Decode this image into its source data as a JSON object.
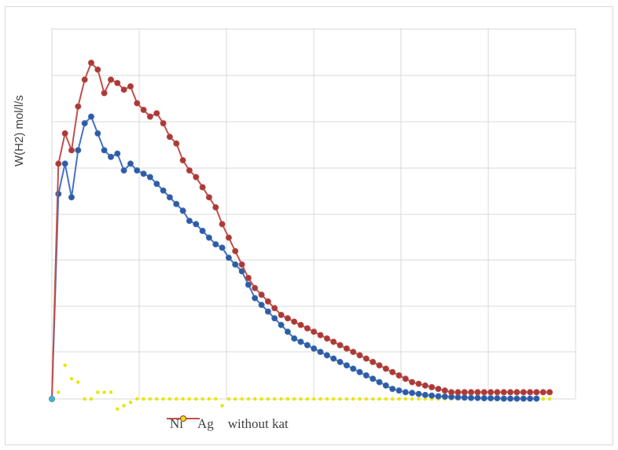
{
  "chart_data": {
    "type": "line",
    "title": "",
    "ylabel": "W(H2) mol/l/s",
    "xlabel": "",
    "grid": "vertical-and-horizontal",
    "legend_position": "bottom",
    "x_start": 0,
    "x_step": 1,
    "ylim": [
      0,
      1.0
    ],
    "series": [
      {
        "name": "Ni",
        "color": "#4472c4",
        "marker_color": "#2e5c9e",
        "values": [
          0,
          0.61,
          0.7,
          0.6,
          0.74,
          0.82,
          0.84,
          0.79,
          0.74,
          0.72,
          0.73,
          0.68,
          0.7,
          0.68,
          0.67,
          0.66,
          0.64,
          0.62,
          0.6,
          0.58,
          0.56,
          0.53,
          0.52,
          0.5,
          0.48,
          0.46,
          0.45,
          0.42,
          0.4,
          0.38,
          0.34,
          0.3,
          0.28,
          0.26,
          0.24,
          0.22,
          0.2,
          0.18,
          0.17,
          0.16,
          0.15,
          0.14,
          0.13,
          0.12,
          0.11,
          0.1,
          0.09,
          0.08,
          0.07,
          0.06,
          0.05,
          0.04,
          0.03,
          0.025,
          0.02,
          0.018,
          0.015,
          0.012,
          0.01,
          0.008,
          0.007,
          0.006,
          0.005,
          0.004,
          0.003,
          0.003,
          0.002,
          0.002,
          0.002,
          0.001,
          0.001,
          0.001,
          0.001,
          0.001,
          0.001
        ]
      },
      {
        "name": "Ag",
        "color": "#c0504d",
        "marker_color": "#a83a37",
        "values": [
          0,
          0.7,
          0.79,
          0.74,
          0.87,
          0.95,
          1.0,
          0.98,
          0.91,
          0.95,
          0.94,
          0.92,
          0.93,
          0.88,
          0.86,
          0.84,
          0.85,
          0.82,
          0.78,
          0.76,
          0.71,
          0.68,
          0.66,
          0.63,
          0.6,
          0.57,
          0.52,
          0.48,
          0.44,
          0.4,
          0.36,
          0.33,
          0.31,
          0.29,
          0.27,
          0.25,
          0.24,
          0.23,
          0.22,
          0.21,
          0.2,
          0.19,
          0.18,
          0.17,
          0.16,
          0.15,
          0.14,
          0.13,
          0.12,
          0.11,
          0.1,
          0.09,
          0.08,
          0.07,
          0.06,
          0.05,
          0.045,
          0.04,
          0.035,
          0.03,
          0.025,
          0.02,
          0.02,
          0.02,
          0.02,
          0.02,
          0.02,
          0.02,
          0.02,
          0.02,
          0.02,
          0.02,
          0.02,
          0.02,
          0.02,
          0.02,
          0.02
        ]
      },
      {
        "name": "without kat",
        "color": "#ffff00",
        "marker_color": "#e6e600",
        "line": false,
        "values": [
          0,
          0.02,
          0.1,
          0.06,
          0.05,
          0.0,
          0.0,
          0.02,
          0.02,
          0.02,
          -0.03,
          -0.02,
          -0.01,
          0.0,
          0.0,
          0.0,
          0.0,
          0.0,
          0.0,
          0.0,
          0.0,
          0.0,
          0.0,
          0.0,
          0.0,
          0.0,
          -0.02,
          0.0,
          0.0,
          0.0,
          0.0,
          0.0,
          0.0,
          0.0,
          0.0,
          0.0,
          0.0,
          0.0,
          0.0,
          0.0,
          0.0,
          0.0,
          0.0,
          0.0,
          0.0,
          0.0,
          0.0,
          0.0,
          0.0,
          0.0,
          0.0,
          0.0,
          0.0,
          0.0,
          0.0,
          0.0,
          0.0,
          0.0,
          0.0,
          0.0,
          0.0,
          0.0,
          0.0,
          0.0,
          0.0,
          0.0,
          0.0,
          0.0,
          0.0,
          0.0,
          0.0,
          0.0,
          0.0,
          0.0,
          0.0,
          0.0,
          0.0
        ]
      }
    ]
  }
}
